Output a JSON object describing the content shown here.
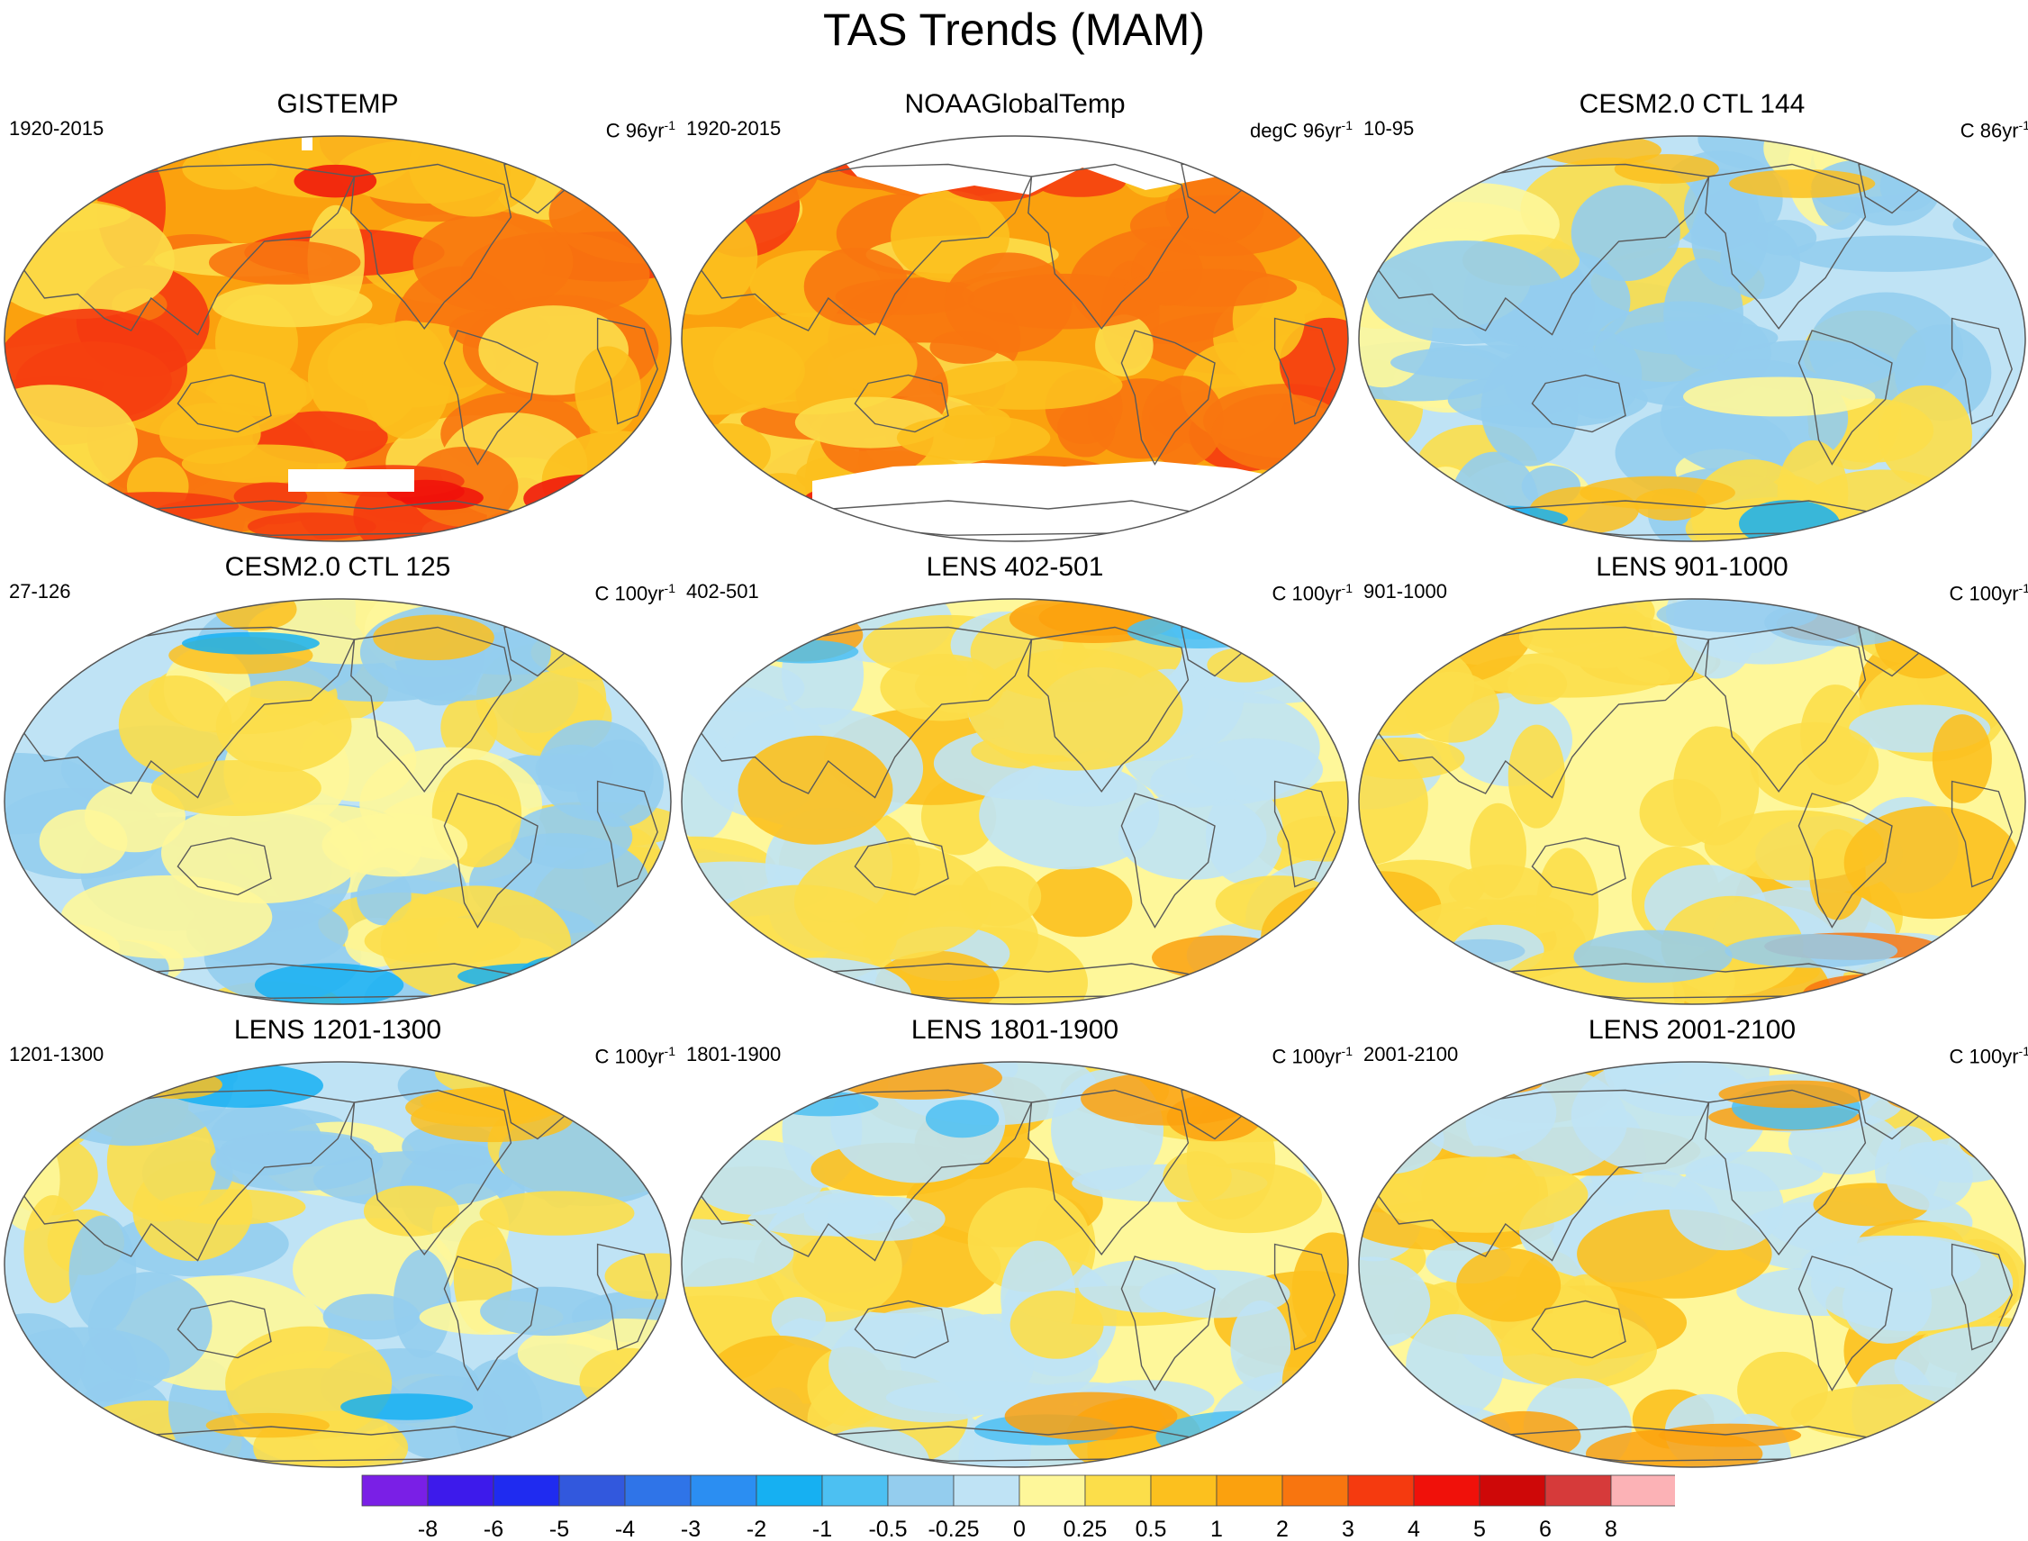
{
  "title": "TAS Trends (MAM)",
  "panels": [
    {
      "title": "GISTEMP",
      "left": "1920-2015",
      "unit_prefix": "C 96yr",
      "unit_sup": "-1",
      "style": "obs",
      "missing": "gis",
      "seed": 11
    },
    {
      "title": "NOAAGlobalTemp",
      "left": "1920-2015",
      "unit_prefix": "degC 96yr",
      "unit_sup": "-1",
      "style": "obs",
      "missing": "noaa",
      "seed": 23
    },
    {
      "title": "CESM2.0 CTL 144",
      "left": "10-95",
      "unit_prefix": "C 86yr",
      "unit_sup": "-1",
      "style": "cool",
      "missing": "none",
      "seed": 37
    },
    {
      "title": "CESM2.0 CTL 125",
      "left": "27-126",
      "unit_prefix": "C 100yr",
      "unit_sup": "-1",
      "style": "cool",
      "missing": "none",
      "seed": 41
    },
    {
      "title": "LENS 402-501",
      "left": "402-501",
      "unit_prefix": "C 100yr",
      "unit_sup": "-1",
      "style": "mixed",
      "missing": "none",
      "seed": 53
    },
    {
      "title": "LENS 901-1000",
      "left": "901-1000",
      "unit_prefix": "C 100yr",
      "unit_sup": "-1",
      "style": "warm",
      "missing": "none",
      "seed": 67
    },
    {
      "title": "LENS 1201-1300",
      "left": "1201-1300",
      "unit_prefix": "C 100yr",
      "unit_sup": "-1",
      "style": "cool",
      "missing": "none",
      "seed": 71
    },
    {
      "title": "LENS 1801-1900",
      "left": "1801-1900",
      "unit_prefix": "C 100yr",
      "unit_sup": "-1",
      "style": "mixed",
      "missing": "none",
      "seed": 89
    },
    {
      "title": "LENS 2001-2100",
      "left": "2001-2100",
      "unit_prefix": "C 100yr",
      "unit_sup": "-1",
      "style": "mixed",
      "missing": "none",
      "seed": 97
    }
  ],
  "chart_data": {
    "type": "heatmap",
    "title": "TAS Trends (MAM)",
    "projection": "Robinson (Pacific-centered)",
    "colorbar_labels": [
      "-8",
      "-6",
      "-5",
      "-4",
      "-3",
      "-2",
      "-1",
      "-0.5",
      "-0.25",
      "0",
      "0.25",
      "0.5",
      "1",
      "2",
      "3",
      "4",
      "5",
      "6",
      "8"
    ],
    "colorbar_colors": [
      "#7a1fe6",
      "#3d1aeb",
      "#1f2bf0",
      "#3258dd",
      "#2f74e8",
      "#2b8ef2",
      "#16b0f2",
      "#4cc0f2",
      "#94cdee",
      "#bfe3f5",
      "#fef79a",
      "#fcde4a",
      "#fcc01e",
      "#fba10e",
      "#f8750f",
      "#f53a0f",
      "#f0110a",
      "#ce0808",
      "#d63a3a",
      "#fcb2b6"
    ]
  }
}
